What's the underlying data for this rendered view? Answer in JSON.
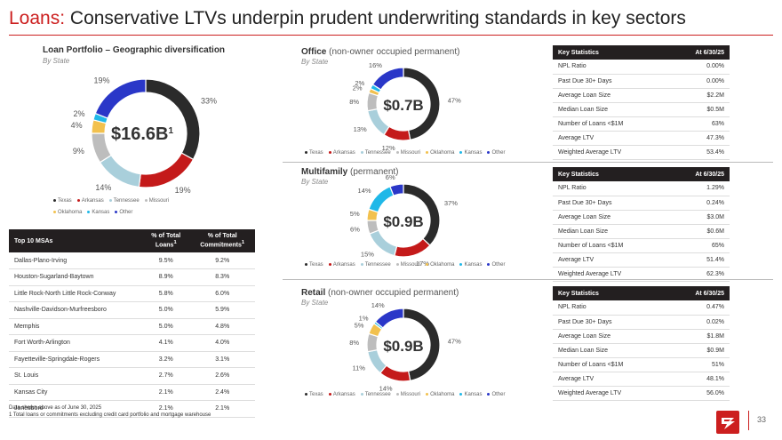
{
  "title": {
    "accent": "Loans:",
    "rest": "Conservative LTVs underpin prudent underwriting standards in key sectors"
  },
  "colors": {
    "accent": "#cc1f1f",
    "texas": "#2b2b2b",
    "arkansas": "#c41a1a",
    "tennessee": "#a9cfdb",
    "missouri": "#bdbdbd",
    "oklahoma": "#f2c14e",
    "kansas": "#1fb8e8",
    "other": "#2a37c8"
  },
  "legend_labels": [
    "Texas",
    "Arkansas",
    "Tennessee",
    "Missouri",
    "Oklahoma",
    "Kansas",
    "Other"
  ],
  "portfolio": {
    "title": "Loan Portfolio – Geographic diversification",
    "subtitle": "By State",
    "center_value": "$16.6B",
    "center_sup": "1",
    "slice_labels": [
      "33%",
      "19%",
      "14%",
      "9%",
      "4%",
      "2%",
      "19%"
    ]
  },
  "office": {
    "title": "Office",
    "subtitle_paren": "(non-owner occupied permanent)",
    "by": "By State",
    "center_value": "$0.7B",
    "slice_labels": [
      "47%",
      "12%",
      "13%",
      "8%",
      "2%",
      "2%",
      "16%"
    ]
  },
  "multifamily": {
    "title": "Multifamily",
    "subtitle_paren": "(permanent)",
    "by": "By State",
    "center_value": "$0.9B",
    "slice_labels": [
      "37%",
      "17%",
      "15%",
      "6%",
      "5%",
      "14%",
      "6%"
    ]
  },
  "retail": {
    "title": "Retail",
    "subtitle_paren": "(non-owner occupied permanent)",
    "by": "By State",
    "center_value": "$0.9B",
    "slice_labels": [
      "47%",
      "14%",
      "11%",
      "8%",
      "5%",
      "1%",
      "14%"
    ]
  },
  "chart_data": [
    {
      "type": "pie",
      "title": "Loan Portfolio – Geographic diversification",
      "categories": [
        "Texas",
        "Arkansas",
        "Tennessee",
        "Missouri",
        "Oklahoma",
        "Kansas",
        "Other"
      ],
      "values": [
        33,
        19,
        14,
        9,
        4,
        2,
        19
      ]
    },
    {
      "type": "pie",
      "title": "Office",
      "categories": [
        "Texas",
        "Arkansas",
        "Tennessee",
        "Missouri",
        "Oklahoma",
        "Kansas",
        "Other"
      ],
      "values": [
        47,
        12,
        13,
        8,
        2,
        2,
        16
      ]
    },
    {
      "type": "pie",
      "title": "Multifamily",
      "categories": [
        "Texas",
        "Arkansas",
        "Tennessee",
        "Missouri",
        "Oklahoma",
        "Kansas",
        "Other"
      ],
      "values": [
        37,
        17,
        15,
        6,
        5,
        14,
        6
      ]
    },
    {
      "type": "pie",
      "title": "Retail",
      "categories": [
        "Texas",
        "Arkansas",
        "Tennessee",
        "Missouri",
        "Oklahoma",
        "Kansas",
        "Other"
      ],
      "values": [
        47,
        14,
        11,
        8,
        5,
        1,
        14
      ]
    }
  ],
  "stats_header": {
    "label": "Key Statistics",
    "date": "At 6/30/25"
  },
  "stats_labels": [
    "NPL Ratio",
    "Past Due 30+ Days",
    "Average Loan Size",
    "Median Loan Size",
    "Number of Loans <$1M",
    "Average LTV",
    "Weighted Average LTV"
  ],
  "office_stats": [
    "0.00%",
    "0.00%",
    "$2.2M",
    "$0.5M",
    "63%",
    "47.3%",
    "53.4%"
  ],
  "multifamily_stats": [
    "1.29%",
    "0.24%",
    "$3.0M",
    "$0.6M",
    "65%",
    "51.4%",
    "62.3%"
  ],
  "retail_stats": [
    "0.47%",
    "0.02%",
    "$1.8M",
    "$0.9M",
    "51%",
    "48.1%",
    "56.0%"
  ],
  "msa": {
    "header": {
      "name": "Top 10 MSAs",
      "loans": "% of Total",
      "loans_line2": "Loans",
      "loans_sup": "1",
      "commit": "% of Total",
      "commit_line2": "Commitments",
      "commit_sup": "1"
    },
    "rows": [
      [
        "Dallas-Plano-Irving",
        "9.5%",
        "9.2%"
      ],
      [
        "Houston-Sugarland-Baytown",
        "8.9%",
        "8.3%"
      ],
      [
        "Little Rock-North Little Rock-Conway",
        "5.8%",
        "6.0%"
      ],
      [
        "Nashville-Davidson-Murfreesboro",
        "5.0%",
        "5.9%"
      ],
      [
        "Memphis",
        "5.0%",
        "4.8%"
      ],
      [
        "Fort Worth-Arlington",
        "4.1%",
        "4.0%"
      ],
      [
        "Fayetteville-Springdale-Rogers",
        "3.2%",
        "3.1%"
      ],
      [
        "St. Louis",
        "2.7%",
        "2.6%"
      ],
      [
        "Kansas City",
        "2.1%",
        "2.4%"
      ],
      [
        "Jonesboro",
        "2.1%",
        "2.1%"
      ]
    ]
  },
  "footnotes": {
    "line1": "Data shown above as of June 30, 2025",
    "line2": "1  Total loans or commitments excluding credit card portfolio and mortgage warehouse"
  },
  "page_number": "33"
}
